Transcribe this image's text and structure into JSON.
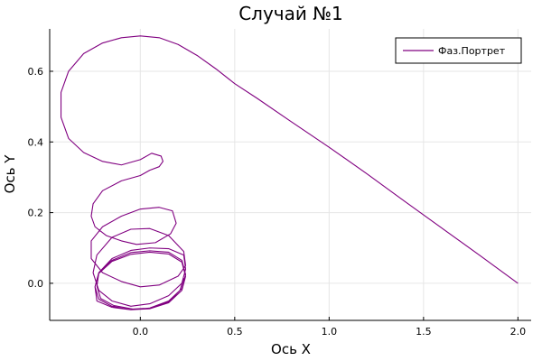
{
  "chart_data": {
    "type": "line",
    "title": "Случай №1",
    "xlabel": "Ось X",
    "ylabel": "Ось Y",
    "xlim": [
      -0.48,
      2.07
    ],
    "ylim": [
      -0.105,
      0.72
    ],
    "x_ticks": [
      0.0,
      0.5,
      1.0,
      1.5,
      2.0
    ],
    "x_tick_labels": [
      "0.0",
      "0.5",
      "1.0",
      "1.5",
      "2.0"
    ],
    "y_ticks": [
      0.0,
      0.2,
      0.4,
      0.6
    ],
    "y_tick_labels": [
      "0.0",
      "0.2",
      "0.4",
      "0.6"
    ],
    "grid": true,
    "legend_position": "top-right",
    "series": [
      {
        "name": "Фаз.Портрет",
        "color": "#800080",
        "x": [
          2.0,
          1.8,
          1.6,
          1.4,
          1.2,
          1.0,
          0.8,
          0.62,
          0.5,
          0.4,
          0.3,
          0.2,
          0.1,
          0.0,
          -0.1,
          -0.2,
          -0.3,
          -0.38,
          -0.42,
          -0.42,
          -0.38,
          -0.3,
          -0.2,
          -0.1,
          0.0,
          0.06,
          0.11,
          0.12,
          0.1,
          0.05,
          0.0,
          -0.1,
          -0.2,
          -0.25,
          -0.26,
          -0.24,
          -0.18,
          -0.1,
          -0.02,
          0.08,
          0.16,
          0.19,
          0.17,
          0.1,
          0.0,
          -0.1,
          -0.2,
          -0.26,
          -0.26,
          -0.2,
          -0.1,
          0.0,
          0.1,
          0.2,
          0.24,
          0.23,
          0.15,
          0.05,
          -0.05,
          -0.15,
          -0.23,
          -0.25,
          -0.22,
          -0.15,
          -0.05,
          0.05,
          0.15,
          0.22,
          0.24,
          0.23,
          0.15,
          0.05,
          -0.05,
          -0.15,
          -0.22,
          -0.24,
          -0.23,
          -0.15,
          -0.05,
          0.05,
          0.15,
          0.22,
          0.24,
          0.22,
          0.15,
          0.05,
          -0.05,
          -0.15,
          -0.22,
          -0.24,
          -0.22,
          -0.15,
          -0.05,
          0.05,
          0.15,
          0.22,
          0.24,
          0.22,
          0.15,
          0.05,
          -0.05,
          -0.15,
          -0.22,
          -0.23,
          -0.21,
          -0.14,
          -0.04,
          0.06,
          0.15,
          0.21,
          0.23
        ],
        "y": [
          0.0,
          0.078,
          0.155,
          0.232,
          0.31,
          0.385,
          0.457,
          0.523,
          0.565,
          0.607,
          0.645,
          0.676,
          0.695,
          0.7,
          0.695,
          0.68,
          0.65,
          0.6,
          0.54,
          0.47,
          0.41,
          0.37,
          0.345,
          0.335,
          0.35,
          0.368,
          0.36,
          0.345,
          0.33,
          0.32,
          0.305,
          0.29,
          0.262,
          0.225,
          0.19,
          0.16,
          0.135,
          0.12,
          0.11,
          0.115,
          0.14,
          0.17,
          0.205,
          0.215,
          0.21,
          0.19,
          0.16,
          0.12,
          0.07,
          0.03,
          0.005,
          -0.01,
          -0.005,
          0.02,
          0.05,
          0.09,
          0.135,
          0.155,
          0.153,
          0.13,
          0.08,
          0.03,
          -0.02,
          -0.05,
          -0.065,
          -0.058,
          -0.035,
          0.0,
          0.04,
          0.08,
          0.098,
          0.1,
          0.093,
          0.07,
          0.03,
          -0.01,
          -0.05,
          -0.068,
          -0.075,
          -0.07,
          -0.05,
          -0.015,
          0.025,
          0.065,
          0.088,
          0.092,
          0.087,
          0.065,
          0.03,
          -0.01,
          -0.045,
          -0.065,
          -0.075,
          -0.072,
          -0.055,
          -0.02,
          0.02,
          0.06,
          0.083,
          0.088,
          0.082,
          0.062,
          0.028,
          -0.008,
          -0.043,
          -0.063,
          -0.073,
          -0.07,
          -0.053,
          -0.02,
          0.015
        ]
      }
    ]
  }
}
